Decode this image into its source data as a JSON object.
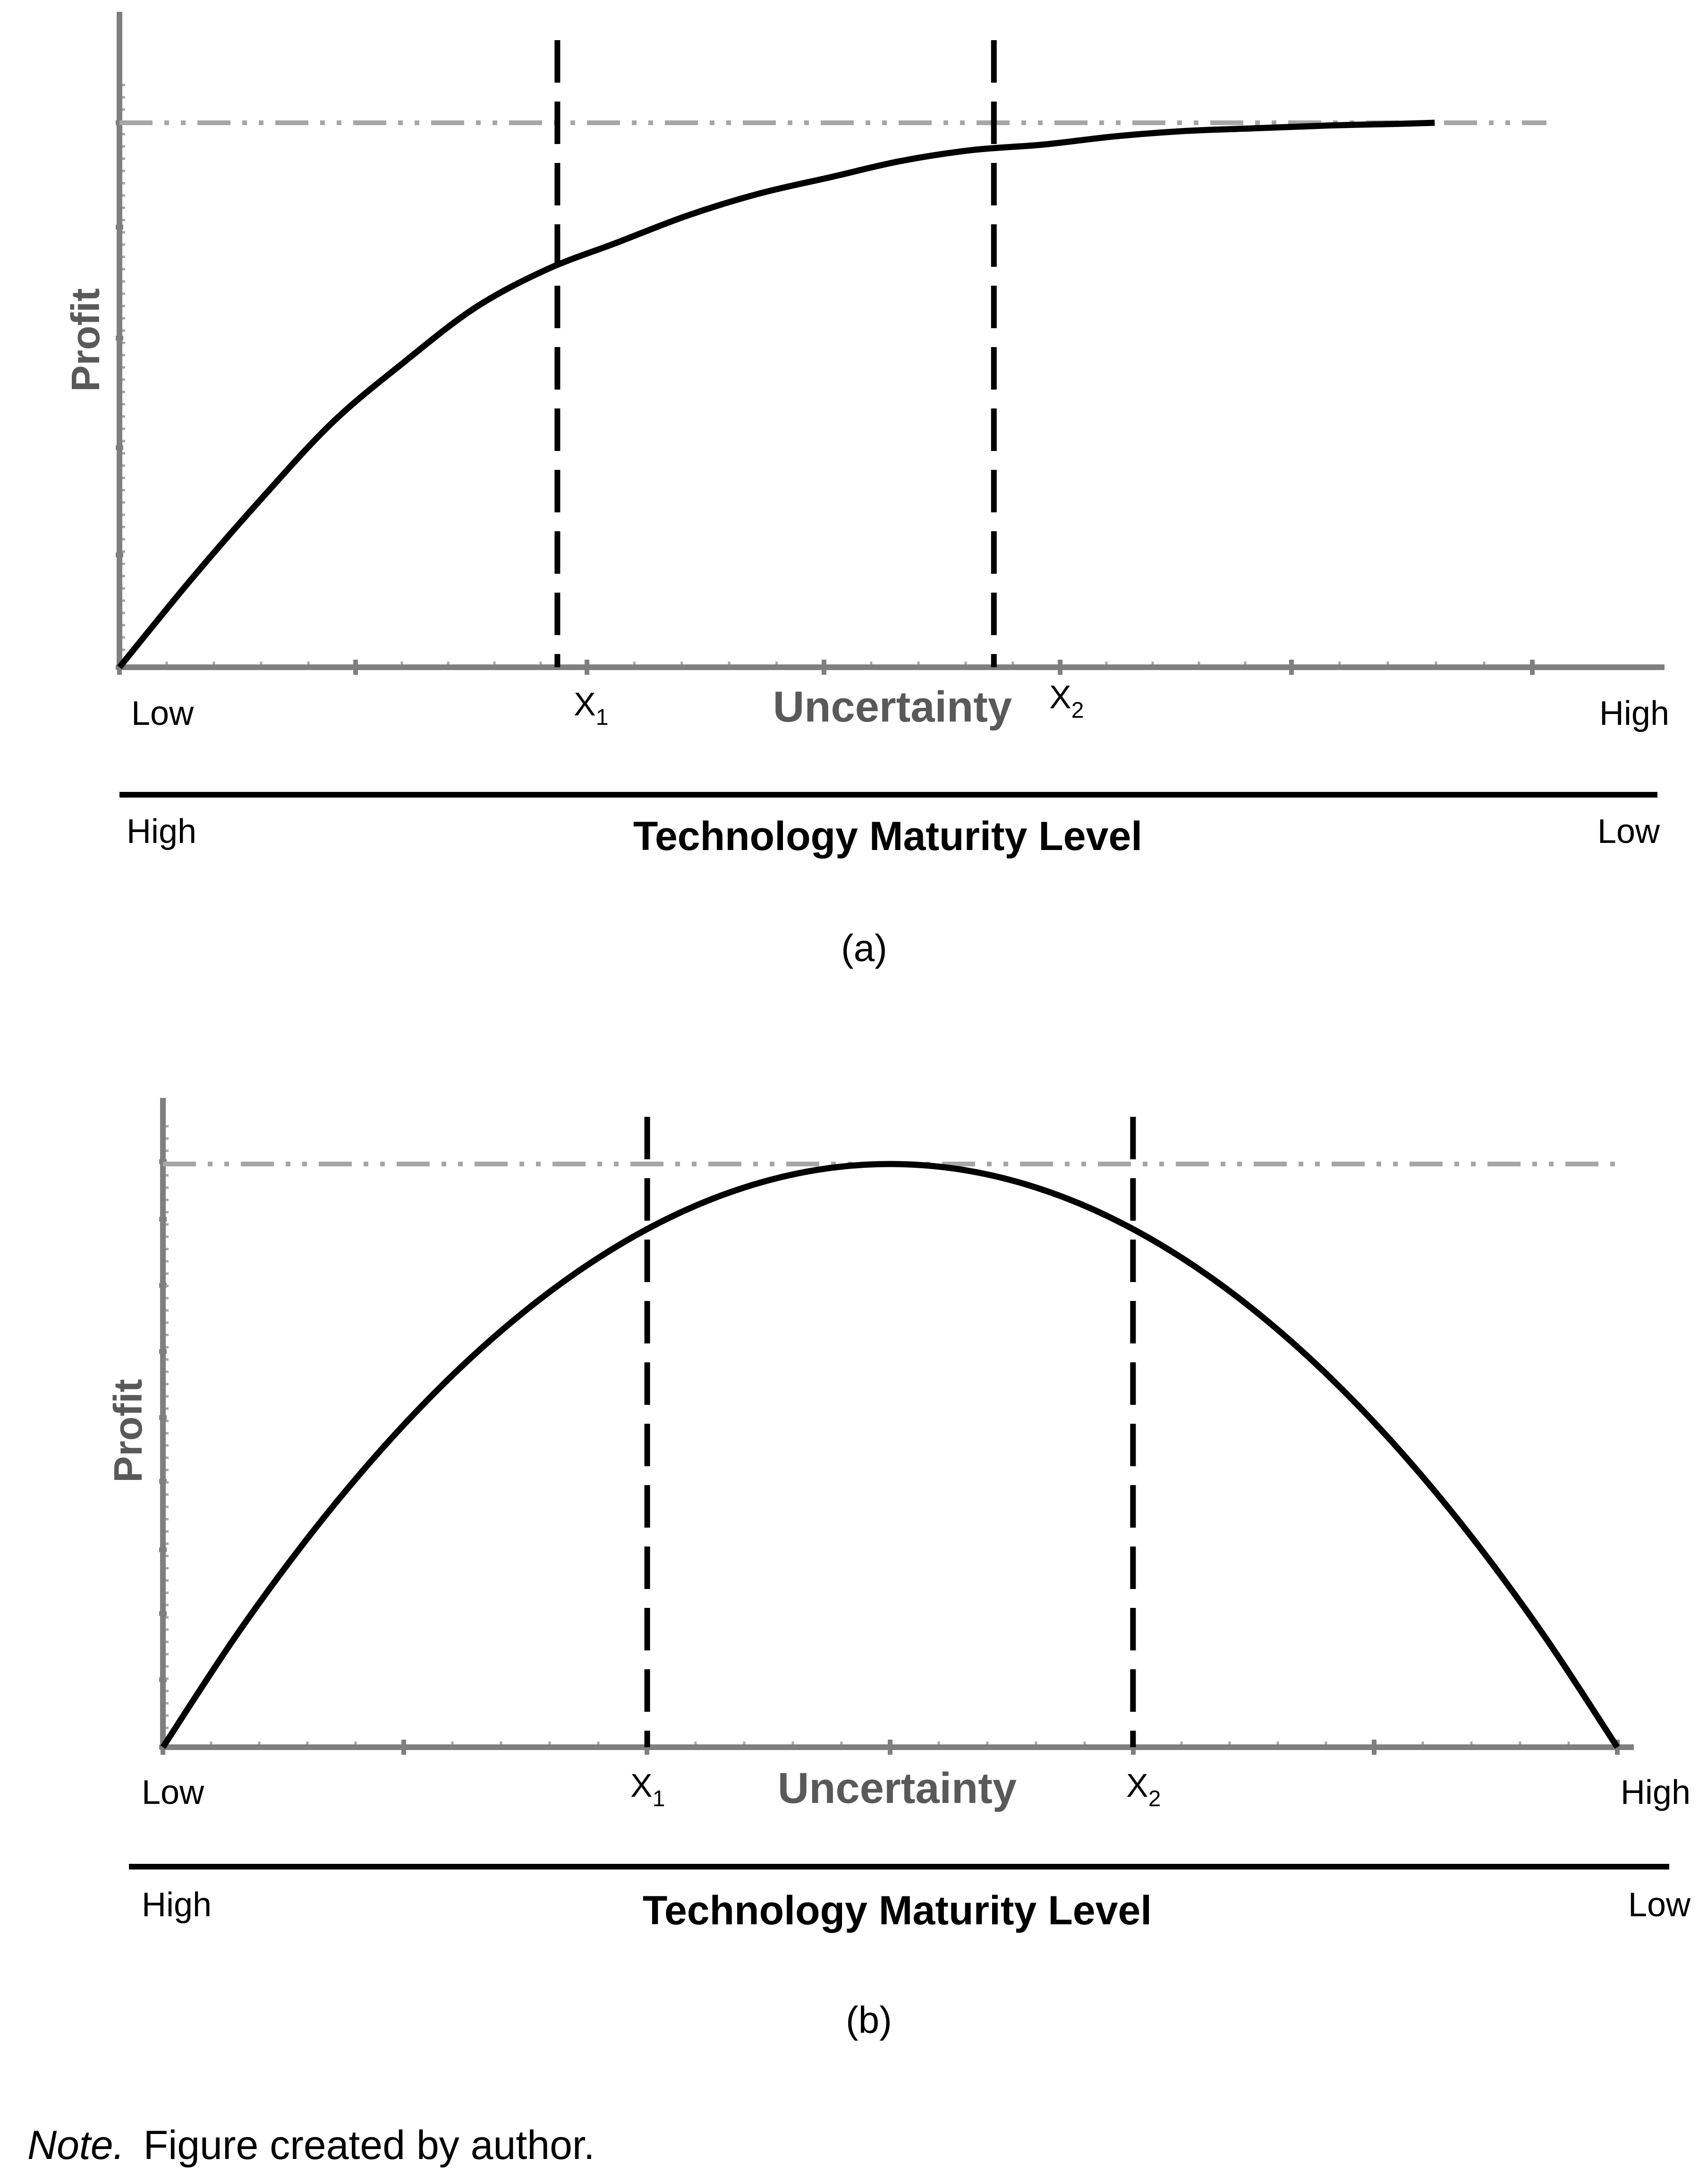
{
  "chart_data": [
    {
      "type": "line",
      "caption": "(a)",
      "ylabel": "Profit",
      "xlabel": "Uncertainty",
      "x_end_labels": [
        "Low",
        "High"
      ],
      "x_marker_labels": [
        {
          "main": "X",
          "sub": "1"
        },
        {
          "main": "X",
          "sub": "2"
        }
      ],
      "secondary_axis": {
        "label": "Technology Maturity Level",
        "end_labels": [
          "High",
          "Low"
        ]
      },
      "xlim": [
        0,
        1
      ],
      "ylim": [
        0,
        1
      ],
      "series": [
        {
          "x": [
            0,
            0.05,
            0.1,
            0.15,
            0.2,
            0.25,
            0.3,
            0.35,
            0.4,
            0.45,
            0.5,
            0.55,
            0.6,
            0.65,
            0.7,
            0.75,
            0.8,
            0.85,
            0.9,
            0.925
          ],
          "y": [
            0,
            0.16,
            0.31,
            0.45,
            0.56,
            0.66,
            0.73,
            0.78,
            0.83,
            0.87,
            0.9,
            0.93,
            0.95,
            0.96,
            0.975,
            0.985,
            0.99,
            0.995,
            0.998,
            1.0
          ]
        }
      ],
      "reference_lines": {
        "vertical_x": [
          0.308,
          0.615
        ],
        "horizontal_y": 1.0
      }
    },
    {
      "type": "line",
      "caption": "(b)",
      "ylabel": "Profit",
      "xlabel": "Uncertainty",
      "x_end_labels": [
        "Low",
        "High"
      ],
      "x_marker_labels": [
        {
          "main": "X",
          "sub": "1"
        },
        {
          "main": "X",
          "sub": "2"
        }
      ],
      "secondary_axis": {
        "label": "Technology Maturity Level",
        "end_labels": [
          "High",
          "Low"
        ]
      },
      "xlim": [
        0,
        1
      ],
      "ylim": [
        0,
        1
      ],
      "series": [
        {
          "x": [
            0,
            0.05,
            0.1,
            0.15,
            0.2,
            0.25,
            0.3,
            0.35,
            0.4,
            0.45,
            0.5,
            0.55,
            0.6,
            0.65,
            0.7,
            0.75,
            0.8,
            0.85,
            0.9,
            0.95,
            1.0
          ],
          "y": [
            0,
            0.19,
            0.36,
            0.51,
            0.64,
            0.75,
            0.84,
            0.91,
            0.96,
            0.99,
            1.0,
            0.99,
            0.96,
            0.91,
            0.84,
            0.75,
            0.64,
            0.51,
            0.36,
            0.19,
            0
          ]
        }
      ],
      "reference_lines": {
        "vertical_x": [
          0.333,
          0.667
        ],
        "horizontal_y": 1.0
      }
    }
  ],
  "note": {
    "lead": "Note.",
    "text": "Figure created by author."
  }
}
